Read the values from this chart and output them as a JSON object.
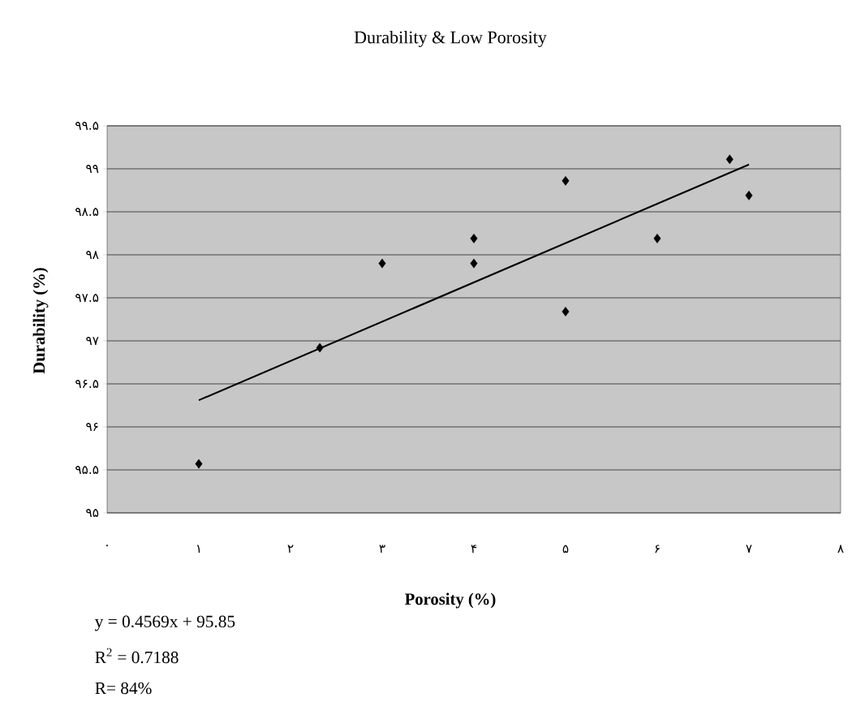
{
  "chart_data": {
    "type": "scatter",
    "title": "Durability & Low Porosity",
    "xlabel": "Porosity (%)",
    "ylabel": "Durability (%)",
    "xlim": [
      0,
      8
    ],
    "ylim": [
      95,
      99.5
    ],
    "xticks": [
      {
        "value": 0,
        "label": "۰"
      },
      {
        "value": 1,
        "label": "۱"
      },
      {
        "value": 2,
        "label": "۲"
      },
      {
        "value": 3,
        "label": "۳"
      },
      {
        "value": 4,
        "label": "۴"
      },
      {
        "value": 5,
        "label": "۵"
      },
      {
        "value": 6,
        "label": "۶"
      },
      {
        "value": 7,
        "label": "۷"
      },
      {
        "value": 8,
        "label": "۸"
      }
    ],
    "yticks": [
      {
        "value": 95,
        "label": "۹۵"
      },
      {
        "value": 95.5,
        "label": "۹۵.۵"
      },
      {
        "value": 96,
        "label": "۹۶"
      },
      {
        "value": 96.5,
        "label": "۹۶.۵"
      },
      {
        "value": 97,
        "label": "۹۷"
      },
      {
        "value": 97.5,
        "label": "۹۷.۵"
      },
      {
        "value": 98,
        "label": "۹۸"
      },
      {
        "value": 98.5,
        "label": "۹۸.۵"
      },
      {
        "value": 99,
        "label": "۹۹"
      },
      {
        "value": 99.5,
        "label": "۹۹.۵"
      }
    ],
    "grid": "y",
    "annotations": [
      "y = 0.4569x + 95.85",
      "R$^{2}$ = 0.7188",
      "R= 84%"
    ],
    "series": [
      {
        "marker": "diamond",
        "color": "#000000",
        "x": [
          1,
          2.32,
          3,
          4,
          4,
          5,
          5,
          6,
          6.79,
          7
        ],
        "values": [
          95.57,
          96.92,
          97.9,
          98.19,
          97.9,
          98.86,
          97.34,
          98.19,
          99.11,
          98.69
        ]
      },
      {
        "type": "line",
        "marker": "none",
        "color": "#000000",
        "x": [
          1,
          7
        ],
        "values": [
          96.31,
          99.05
        ]
      }
    ]
  }
}
